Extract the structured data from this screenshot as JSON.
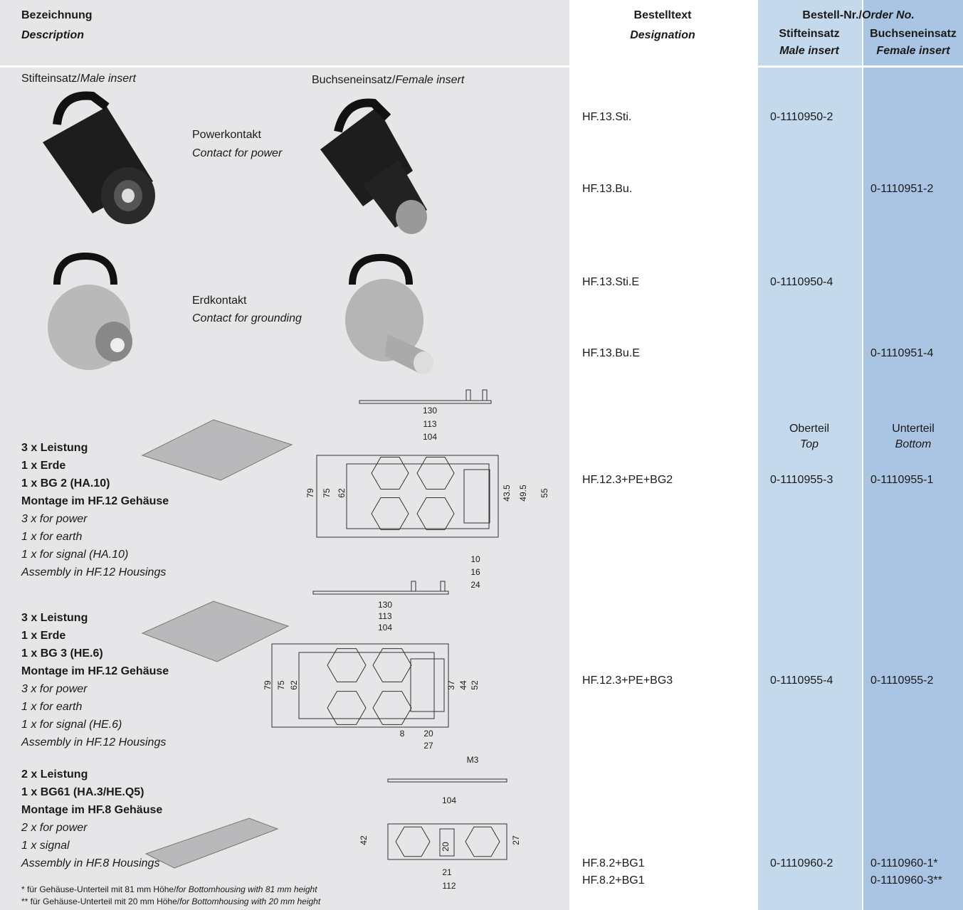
{
  "header": {
    "description": [
      "Bezeichnung",
      "Description"
    ],
    "designation": [
      "Bestelltext",
      "Designation"
    ],
    "order_no": [
      "Bestell-Nr./",
      "Order No."
    ],
    "male": [
      "Stifteinsatz",
      "Male insert"
    ],
    "female": [
      "Buchseneinsatz",
      "Female insert"
    ]
  },
  "inserts": {
    "male": [
      "Stifteinsatz/",
      "Male insert"
    ],
    "female": [
      "Buchseneinsatz/",
      "Female insert"
    ]
  },
  "contacts": [
    {
      "label": [
        "Powerkontakt",
        "Contact for power"
      ]
    },
    {
      "label": [
        "Erdkontakt",
        "Contact for grounding"
      ]
    }
  ],
  "orders": [
    {
      "designation": "HF.13.Sti.",
      "male": "0-1110950-2"
    },
    {
      "designation": "HF.13.Bu.",
      "female": "0-1110951-2"
    },
    {
      "designation": "HF.13.Sti.E",
      "male": "0-1110950-4"
    },
    {
      "designation": "HF.13.Bu.E",
      "female": "0-1110951-4"
    },
    {
      "designation": "HF.12.3+PE+BG2",
      "male": "0-1110955-3",
      "female": "0-1110955-1"
    },
    {
      "designation": "HF.12.3+PE+BG3",
      "male": "0-1110955-4",
      "female": "0-1110955-2"
    },
    {
      "designation": "HF.8.2+BG1",
      "male": "0-1110960-2",
      "female": "0-1110960-1*"
    },
    {
      "designation": "HF.8.2+BG1",
      "female": "0-1110960-3**"
    }
  ],
  "top_bottom": {
    "top": [
      "Oberteil",
      "Top"
    ],
    "bottom": [
      "Unterteil",
      "Bottom"
    ]
  },
  "plates": [
    {
      "de": [
        "3 x Leistung",
        "1 x Erde",
        "1 x BG 2 (HA.10)",
        "Montage im HF.12 Gehäuse"
      ],
      "en": [
        "3 x for power",
        "1 x for earth",
        "1 x for signal (HA.10)",
        "Assembly in HF.12 Housings"
      ],
      "dims": [
        130,
        113,
        104,
        79,
        75,
        62,
        43.5,
        49.5,
        55,
        10,
        16,
        24
      ]
    },
    {
      "de": [
        "3 x Leistung",
        "1 x Erde",
        "1 x BG 3 (HE.6)",
        "Montage im HF.12 Gehäuse"
      ],
      "en": [
        "3 x for power",
        "1 x for earth",
        "1 x for signal (HE.6)",
        "Assembly in HF.12 Housings"
      ],
      "dims": [
        130,
        113,
        104,
        79,
        75,
        62,
        37,
        44,
        52,
        8,
        20,
        27
      ]
    },
    {
      "de": [
        "2 x Leistung",
        "1 x BG61 (HA.3/HE.Q5)",
        "Montage im HF.8 Gehäuse"
      ],
      "en": [
        "2 x for power",
        "1 x signal",
        "Assembly in HF.8 Housings"
      ],
      "dims": [
        "M3",
        104,
        42,
        20,
        27,
        21,
        112
      ]
    }
  ],
  "footnotes": [
    [
      "* für Gehäuse-Unterteil mit 81 mm Höhe/",
      "for Bottomhousing with 81 mm height"
    ],
    [
      "** für Gehäuse-Unterteil mit 20 mm Höhe/",
      "for Bottomhousing with 20 mm height"
    ]
  ]
}
